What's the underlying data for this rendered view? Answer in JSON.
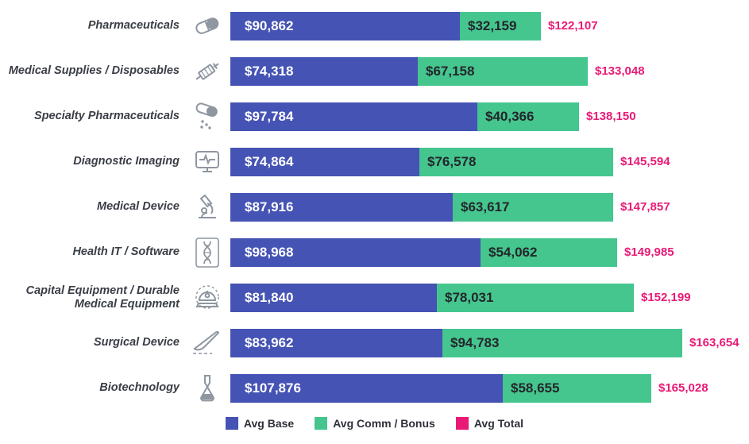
{
  "chart_data": {
    "type": "bar",
    "orientation": "horizontal",
    "stacked": true,
    "title": "",
    "xlabel": "",
    "ylabel": "",
    "xlim": [
      0,
      165028
    ],
    "grid": false,
    "legend_position": "bottom",
    "categories": [
      "Pharmaceuticals",
      "Medical Supplies / Disposables",
      "Specialty Pharmaceuticals",
      "Diagnostic Imaging",
      "Medical Device",
      "Health IT / Software",
      "Capital Equipment / Durable Medical Equipment",
      "Surgical Device",
      "Biotechnology"
    ],
    "icons": [
      "pill-icon",
      "syringe-icon",
      "spilling-capsule-icon",
      "diagnostic-monitor-icon",
      "microscope-icon",
      "dna-icon",
      "capital-equipment-icon",
      "scalpel-icon",
      "flask-icon"
    ],
    "series": [
      {
        "name": "Avg Base",
        "color": "#4553b4",
        "values": [
          90862,
          74318,
          97784,
          74864,
          87916,
          98968,
          81840,
          83962,
          107876
        ]
      },
      {
        "name": "Avg Comm / Bonus",
        "color": "#45c68e",
        "values": [
          32159,
          67158,
          40366,
          76578,
          63617,
          54062,
          78031,
          94783,
          58655
        ]
      },
      {
        "name": "Avg Total",
        "color": "#e81a75",
        "values": [
          122107,
          133048,
          138150,
          145594,
          147857,
          149985,
          152199,
          163654,
          165028
        ]
      }
    ],
    "value_labels": {
      "base": [
        "$90,862",
        "$74,318",
        "$97,784",
        "$74,864",
        "$87,916",
        "$98,968",
        "$81,840",
        "$83,962",
        "$107,876"
      ],
      "comm": [
        "$32,159",
        "$67,158",
        "$40,366",
        "$76,578",
        "$63,617",
        "$54,062",
        "$78,031",
        "$94,783",
        "$58,655"
      ],
      "total": [
        "$122,107",
        "$133,048",
        "$138,150",
        "$145,594",
        "$147,857",
        "$149,985",
        "$152,199",
        "$163,654",
        "$165,028"
      ]
    },
    "legend": [
      {
        "label": "Avg Base",
        "color": "#4553b4"
      },
      {
        "label": "Avg Comm / Bonus",
        "color": "#45c68e"
      },
      {
        "label": "Avg Total",
        "color": "#e81a75"
      }
    ]
  }
}
